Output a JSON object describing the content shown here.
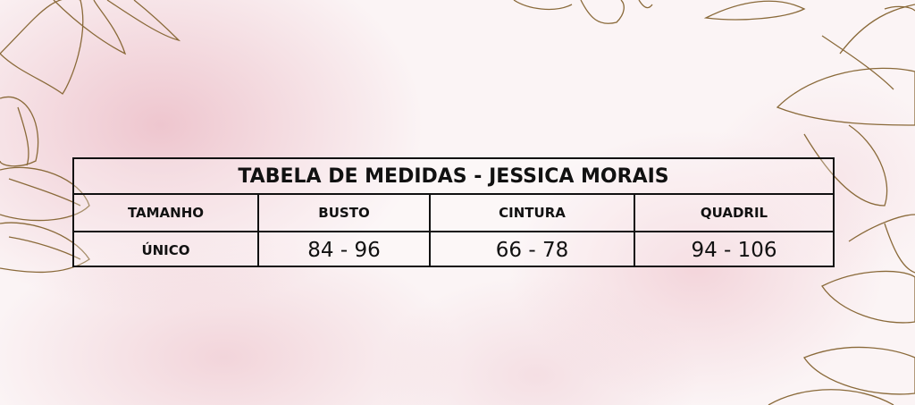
{
  "table": {
    "title": "TABELA DE MEDIDAS - JESSICA MORAIS",
    "headers": [
      "TAMANHO",
      "BUSTO",
      "CINTURA",
      "QUADRIL"
    ],
    "rows": [
      [
        "ÚNICO",
        "84 - 96",
        "66 - 78",
        "94 - 106"
      ]
    ]
  },
  "colors": {
    "accent_outline": "#8a6a3a",
    "background_pink": "#ecbec8",
    "border": "#111111"
  }
}
